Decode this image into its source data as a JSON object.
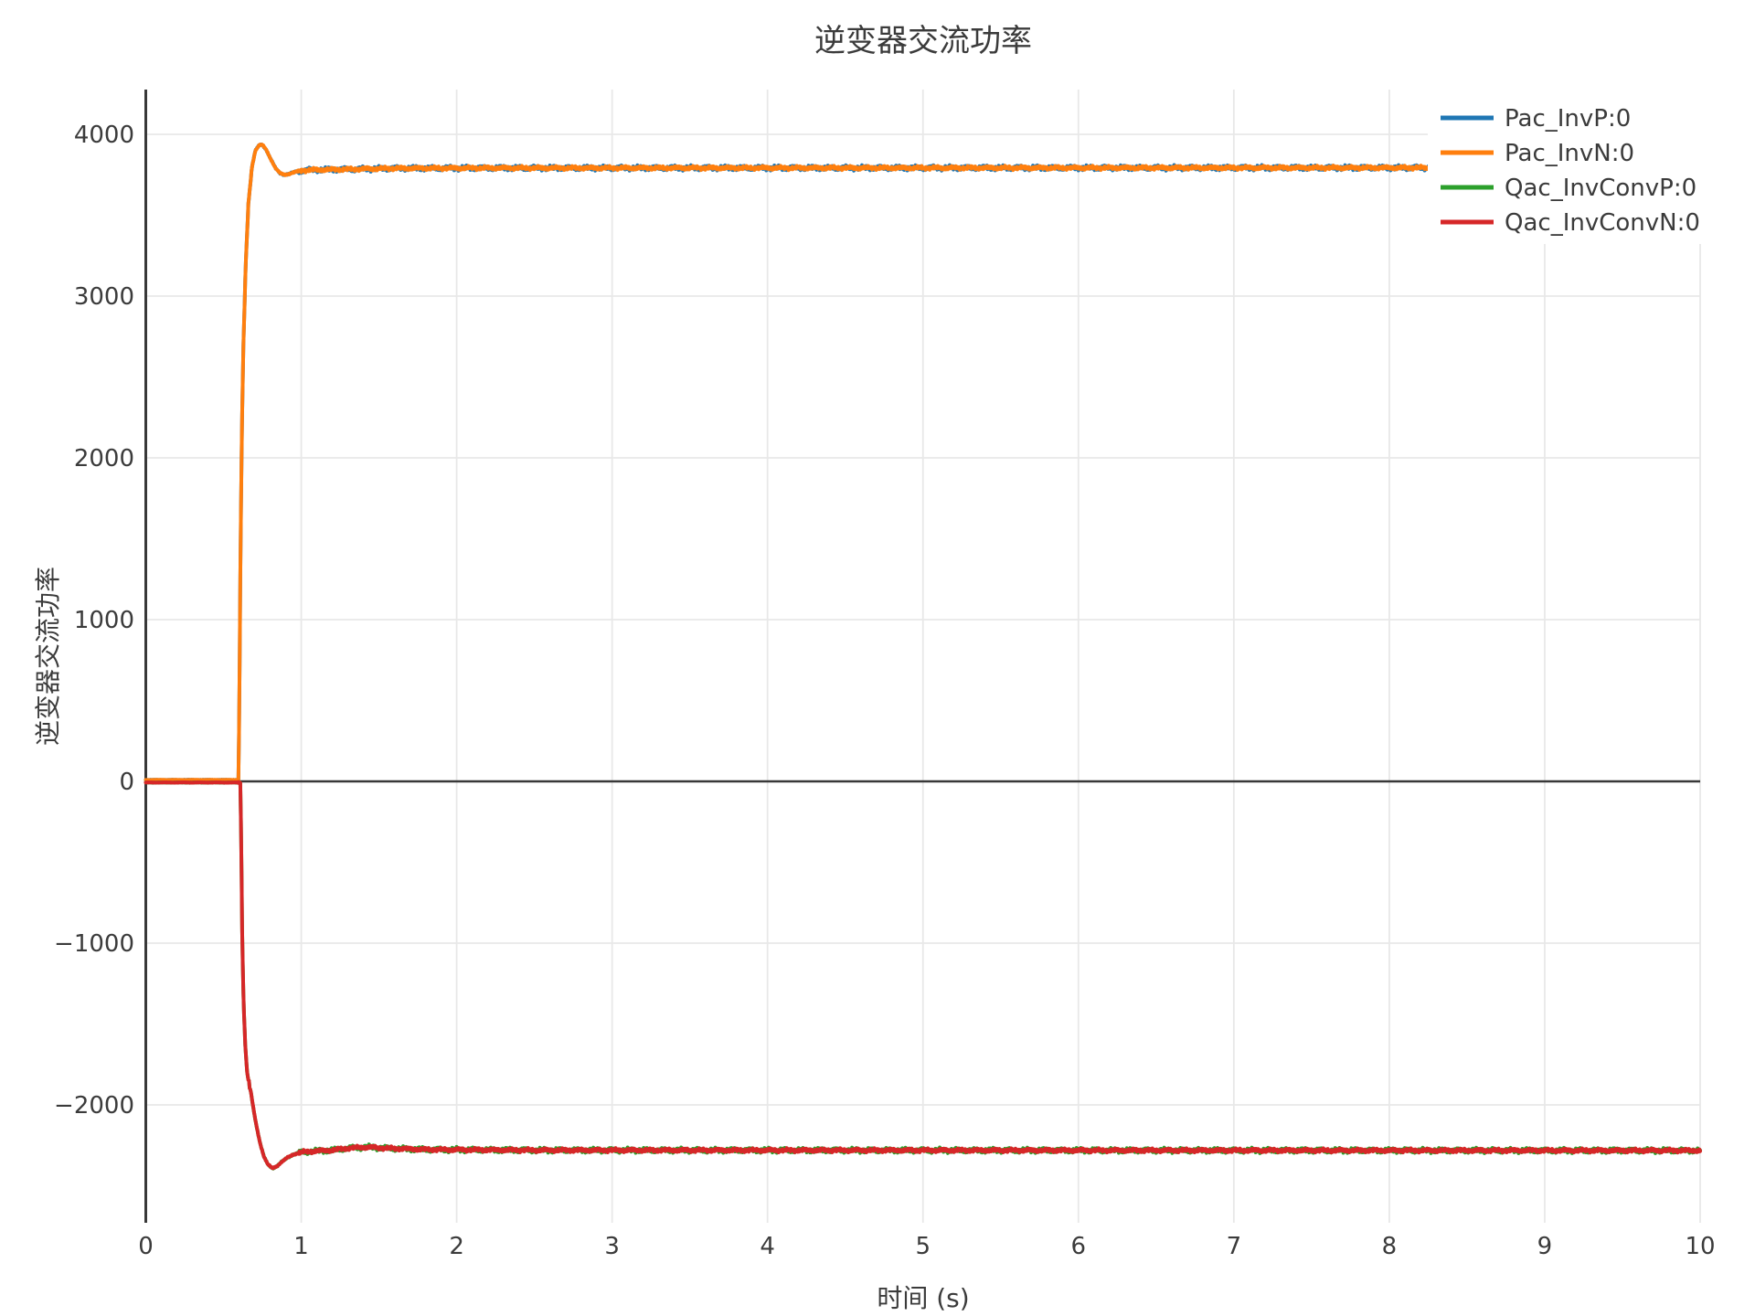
{
  "title": {
    "text": "逆变器交流功率"
  },
  "x_axis": {
    "label": "时间 (s)",
    "ticks": [
      0,
      1,
      2,
      3,
      4,
      5,
      6,
      7,
      8,
      9,
      10
    ],
    "tick_labels": [
      "0",
      "1",
      "2",
      "3",
      "4",
      "5",
      "6",
      "7",
      "8",
      "9",
      "10"
    ],
    "lim": [
      0,
      10
    ]
  },
  "y_axis": {
    "label": "逆变器交流功率",
    "ticks": [
      -2000,
      -1000,
      0,
      1000,
      2000,
      3000,
      4000
    ],
    "tick_labels": [
      "−2000",
      "−1000",
      "0",
      "1000",
      "2000",
      "3000",
      "4000"
    ],
    "lim": [
      -2730,
      4280
    ]
  },
  "legend": {
    "position": "upper right",
    "entries": [
      {
        "label": "Pac_InvP:0",
        "color": "#1f77b4"
      },
      {
        "label": "Pac_InvN:0",
        "color": "#ff7f0e"
      },
      {
        "label": "Qac_InvConvP:0",
        "color": "#2ca02c"
      },
      {
        "label": "Qac_InvConvN:0",
        "color": "#d62728"
      }
    ]
  },
  "styles": {
    "background": "#ffffff",
    "grid_color": "#e8e8e8",
    "spine_color": "#383838",
    "zero_line_color": "#383838",
    "text_color": "#3b3b3b"
  },
  "chart_data": {
    "type": "line",
    "title": "逆变器交流功率",
    "xlabel": "时间 (s)",
    "ylabel": "逆变器交流功率",
    "xlim": [
      0,
      10
    ],
    "ylim": [
      -2730,
      4280
    ],
    "grid": true,
    "legend_position": "upper right",
    "step_time_s": 0.6,
    "steady_state": {
      "Pac": 3795,
      "Qac": -2280,
      "Pac_peak": 3935,
      "Qac_min": -2392
    },
    "noise_amplitude": {
      "initial": 2,
      "transient": 5,
      "steady_top": 14,
      "steady_under": 18
    },
    "series": [
      {
        "name": "Pac_InvP:0",
        "color": "#1f77b4",
        "note": "exactly overlaps Pac_InvN:0 (visible only as specks)",
        "keypoints": [
          [
            0,
            9
          ],
          [
            0.597,
            9
          ],
          [
            0.603,
            600
          ],
          [
            0.609,
            1400
          ],
          [
            0.617,
            2100
          ],
          [
            0.628,
            2700
          ],
          [
            0.643,
            3200
          ],
          [
            0.66,
            3570
          ],
          [
            0.683,
            3800
          ],
          [
            0.705,
            3900
          ],
          [
            0.73,
            3933
          ],
          [
            0.75,
            3935
          ],
          [
            0.775,
            3905
          ],
          [
            0.8,
            3855
          ],
          [
            0.835,
            3790
          ],
          [
            0.865,
            3758
          ],
          [
            0.895,
            3750
          ],
          [
            0.93,
            3758
          ],
          [
            0.97,
            3770
          ],
          [
            1.02,
            3778
          ],
          [
            1.1,
            3781
          ],
          [
            1.3,
            3784
          ],
          [
            1.6,
            3790
          ],
          [
            2.2,
            3792
          ],
          [
            10,
            3794
          ]
        ]
      },
      {
        "name": "Pac_InvN:0",
        "color": "#ff7f0e",
        "note": "drawn over Pac_InvP:0",
        "keypoints": [
          [
            0,
            9
          ],
          [
            0.597,
            9
          ],
          [
            0.603,
            600
          ],
          [
            0.609,
            1400
          ],
          [
            0.617,
            2100
          ],
          [
            0.628,
            2700
          ],
          [
            0.643,
            3200
          ],
          [
            0.66,
            3570
          ],
          [
            0.683,
            3800
          ],
          [
            0.705,
            3900
          ],
          [
            0.73,
            3933
          ],
          [
            0.75,
            3935
          ],
          [
            0.775,
            3905
          ],
          [
            0.8,
            3855
          ],
          [
            0.835,
            3790
          ],
          [
            0.865,
            3758
          ],
          [
            0.895,
            3750
          ],
          [
            0.93,
            3758
          ],
          [
            0.97,
            3770
          ],
          [
            1.02,
            3778
          ],
          [
            1.1,
            3781
          ],
          [
            1.3,
            3784
          ],
          [
            1.6,
            3790
          ],
          [
            2.2,
            3792
          ],
          [
            10,
            3794
          ]
        ]
      },
      {
        "name": "Qac_InvConvP:0",
        "color": "#2ca02c",
        "note": "exactly overlaps Qac_InvConvN:0 (visible only as specks)",
        "keypoints": [
          [
            0,
            -7
          ],
          [
            0.609,
            -7
          ],
          [
            0.615,
            -500
          ],
          [
            0.621,
            -1000
          ],
          [
            0.63,
            -1400
          ],
          [
            0.641,
            -1650
          ],
          [
            0.652,
            -1800
          ],
          [
            0.66,
            -1848
          ],
          [
            0.664,
            -1852
          ],
          [
            0.668,
            -1895
          ],
          [
            0.676,
            -1920
          ],
          [
            0.69,
            -2010
          ],
          [
            0.71,
            -2120
          ],
          [
            0.735,
            -2235
          ],
          [
            0.76,
            -2320
          ],
          [
            0.785,
            -2368
          ],
          [
            0.815,
            -2392
          ],
          [
            0.845,
            -2378
          ],
          [
            0.875,
            -2352
          ],
          [
            0.91,
            -2327
          ],
          [
            0.95,
            -2306
          ],
          [
            1.0,
            -2293
          ],
          [
            1.08,
            -2286
          ],
          [
            1.2,
            -2280
          ],
          [
            1.3,
            -2268
          ],
          [
            1.42,
            -2261
          ],
          [
            1.55,
            -2268
          ],
          [
            1.8,
            -2276
          ],
          [
            2.5,
            -2280
          ],
          [
            10,
            -2282
          ]
        ]
      },
      {
        "name": "Qac_InvConvN:0",
        "color": "#d62728",
        "note": "drawn over Qac_InvConvP:0",
        "keypoints": [
          [
            0,
            -7
          ],
          [
            0.609,
            -7
          ],
          [
            0.615,
            -500
          ],
          [
            0.621,
            -1000
          ],
          [
            0.63,
            -1400
          ],
          [
            0.641,
            -1650
          ],
          [
            0.652,
            -1800
          ],
          [
            0.66,
            -1848
          ],
          [
            0.664,
            -1852
          ],
          [
            0.668,
            -1895
          ],
          [
            0.676,
            -1920
          ],
          [
            0.69,
            -2010
          ],
          [
            0.71,
            -2120
          ],
          [
            0.735,
            -2235
          ],
          [
            0.76,
            -2320
          ],
          [
            0.785,
            -2368
          ],
          [
            0.815,
            -2392
          ],
          [
            0.845,
            -2378
          ],
          [
            0.875,
            -2352
          ],
          [
            0.91,
            -2327
          ],
          [
            0.95,
            -2306
          ],
          [
            1.0,
            -2293
          ],
          [
            1.08,
            -2286
          ],
          [
            1.2,
            -2280
          ],
          [
            1.3,
            -2268
          ],
          [
            1.42,
            -2261
          ],
          [
            1.55,
            -2268
          ],
          [
            1.8,
            -2276
          ],
          [
            2.5,
            -2280
          ],
          [
            10,
            -2282
          ]
        ]
      }
    ]
  }
}
